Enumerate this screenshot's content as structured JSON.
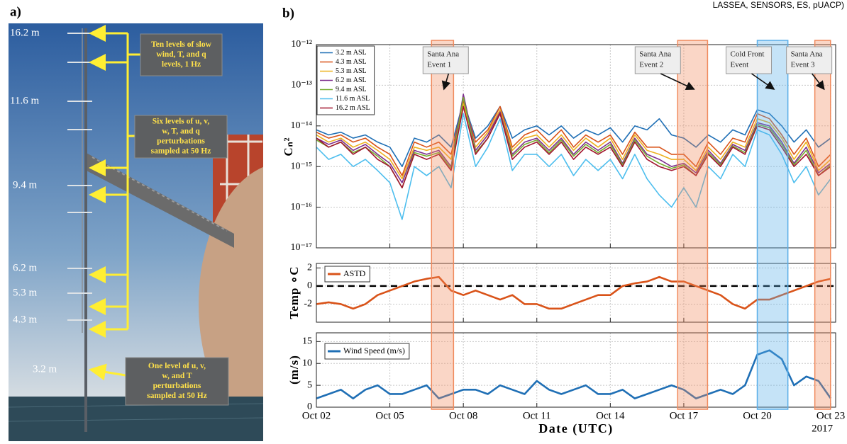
{
  "header": "LASSEA, SENSORS, ES, pUACP)",
  "panel_a": {
    "label": "a)",
    "heights": [
      "16.2 m",
      "11.6 m",
      "9.4 m",
      "6.2 m",
      "5.3 m",
      "4.3 m",
      "3.2 m"
    ],
    "boxes": [
      [
        "Ten levels of slow",
        "wind, T, and q",
        "levels, 1 Hz"
      ],
      [
        "Six levels of u, v,",
        "w, T, and q",
        "perturbations",
        "sampled at 50 Hz"
      ],
      [
        "One level of u, v,",
        "w, and T",
        "perturbations",
        "sampled at 50 Hz"
      ]
    ]
  },
  "panel_b_label": "b)",
  "chart_data": [
    {
      "type": "line",
      "yscale": "log",
      "ylabel": "Cₙ²",
      "ylim": [
        1e-17,
        1e-12
      ],
      "yticks": [
        {
          "value": 1e-17,
          "label": "10⁻¹⁷"
        },
        {
          "value": 1e-16,
          "label": "10⁻¹⁶"
        },
        {
          "value": 1e-15,
          "label": "10⁻¹⁵"
        },
        {
          "value": 1e-14,
          "label": "10⁻¹⁴"
        },
        {
          "value": 1e-13,
          "label": "10⁻¹³"
        },
        {
          "value": 1e-12,
          "label": "10⁻¹²"
        }
      ],
      "xlim": [
        2,
        23.2
      ],
      "grid": true,
      "legend": "upper left",
      "x": [
        2,
        2.5,
        3,
        3.5,
        4,
        4.5,
        5,
        5.5,
        6,
        6.5,
        7,
        7.5,
        8,
        8.5,
        9,
        9.5,
        10,
        10.5,
        11,
        11.5,
        12,
        12.5,
        13,
        13.5,
        14,
        14.5,
        15,
        15.5,
        16,
        16.5,
        17,
        17.5,
        18,
        18.5,
        19,
        19.5,
        20,
        20.5,
        21,
        21.5,
        22,
        22.5,
        23
      ],
      "series": [
        {
          "name": "3.2 m ASL",
          "color": "#1f6fb5",
          "values": [
            8e-15,
            6e-15,
            7e-15,
            5e-15,
            6e-15,
            4e-15,
            3e-15,
            1e-15,
            5e-15,
            4e-15,
            6e-15,
            3e-15,
            4e-14,
            5e-15,
            1e-14,
            3e-14,
            5e-15,
            8e-15,
            1e-14,
            6e-15,
            1e-14,
            5e-15,
            8e-15,
            6e-15,
            9e-15,
            4e-15,
            1e-14,
            8e-15,
            1.5e-14,
            6e-15,
            5e-15,
            3e-15,
            6e-15,
            4e-15,
            8e-15,
            6e-15,
            2.5e-14,
            2e-14,
            1e-14,
            4e-15,
            8e-15,
            3e-15,
            5e-15
          ]
        },
        {
          "name": "4.3 m ASL",
          "color": "#d95319",
          "values": [
            7e-15,
            5e-15,
            6e-15,
            4e-15,
            5e-15,
            3e-15,
            2e-15,
            6e-16,
            4e-15,
            3e-15,
            4e-15,
            2e-15,
            4e-14,
            4e-15,
            8e-15,
            3e-14,
            3e-15,
            6e-15,
            8e-15,
            4e-15,
            8e-15,
            3e-15,
            6e-15,
            4e-15,
            6e-15,
            2e-15,
            7e-15,
            3e-15,
            3e-15,
            2e-15,
            2e-15,
            1e-15,
            4e-15,
            2e-15,
            5e-15,
            4e-15,
            2e-14,
            1.5e-14,
            6e-15,
            2e-15,
            5e-15,
            1e-15,
            2e-15
          ]
        },
        {
          "name": "5.3 m ASL",
          "color": "#edb120",
          "values": [
            6e-15,
            4e-15,
            5e-15,
            3e-15,
            4e-15,
            2.5e-15,
            1.5e-15,
            5e-16,
            3e-15,
            2.5e-15,
            3e-15,
            1.5e-15,
            3.5e-14,
            3e-15,
            7e-15,
            2.5e-14,
            2.5e-15,
            5e-15,
            6e-15,
            3e-15,
            6e-15,
            2.5e-15,
            5e-15,
            3e-15,
            5e-15,
            1.5e-15,
            6e-15,
            2.5e-15,
            2e-15,
            1.5e-15,
            1.5e-15,
            8e-16,
            3e-15,
            1.5e-15,
            4e-15,
            3e-15,
            1.5e-14,
            1.2e-14,
            5e-15,
            1.5e-15,
            4e-15,
            8e-16,
            1.5e-15
          ]
        },
        {
          "name": "6.2 m ASL",
          "color": "#7e2f8e",
          "values": [
            5e-15,
            3.5e-15,
            4.5e-15,
            2.5e-15,
            3.5e-15,
            2e-15,
            1.2e-15,
            4e-16,
            2.5e-15,
            2e-15,
            2.5e-15,
            1e-15,
            6e-14,
            2.5e-15,
            6e-15,
            2.2e-14,
            2e-15,
            4e-15,
            5e-15,
            2.5e-15,
            5e-15,
            2e-15,
            4e-15,
            2.5e-15,
            4e-15,
            1.2e-15,
            5e-15,
            2e-15,
            1.5e-15,
            1e-15,
            1.2e-15,
            7e-16,
            2.5e-15,
            1.2e-15,
            3.5e-15,
            2.5e-15,
            1.2e-14,
            1e-14,
            4e-15,
            1.2e-15,
            3e-15,
            7e-16,
            1.2e-15
          ]
        },
        {
          "name": "9.4 m ASL",
          "color": "#77ac30",
          "values": [
            4.5e-15,
            3e-15,
            4e-15,
            2.2e-15,
            3e-15,
            1.8e-15,
            1e-15,
            3e-16,
            2.2e-15,
            1.8e-15,
            2.2e-15,
            9e-16,
            5e-14,
            2.2e-15,
            5e-15,
            2e-14,
            1.8e-15,
            3.5e-15,
            4.5e-15,
            2.2e-15,
            4.5e-15,
            1.8e-15,
            3.5e-15,
            2.2e-15,
            3.5e-15,
            1.1e-15,
            4.5e-15,
            1.8e-15,
            1.2e-15,
            9e-16,
            1.1e-15,
            6e-16,
            2.2e-15,
            1.1e-15,
            3.2e-15,
            2.2e-15,
            1.1e-14,
            9e-15,
            3.5e-15,
            1.1e-15,
            2.5e-15,
            6e-16,
            1.1e-15
          ]
        },
        {
          "name": "11.6 m ASL",
          "color": "#4dbeee",
          "values": [
            3e-15,
            1.5e-15,
            2e-15,
            1e-15,
            1.5e-15,
            8e-16,
            4e-16,
            5e-17,
            1e-15,
            6e-16,
            1e-15,
            3e-16,
            2e-14,
            1e-15,
            3e-15,
            1.5e-14,
            8e-16,
            2e-15,
            2e-15,
            1e-15,
            2e-15,
            6e-16,
            1.5e-15,
            8e-16,
            1.5e-15,
            5e-16,
            2e-15,
            5e-16,
            2e-16,
            1e-16,
            3e-16,
            1e-16,
            1e-15,
            5e-16,
            2e-15,
            1e-15,
            8e-15,
            6e-15,
            2e-15,
            4e-16,
            1e-15,
            2e-16,
            5e-16
          ]
        },
        {
          "name": "16.2 m ASL",
          "color": "#a2142f",
          "values": [
            5e-15,
            3e-15,
            4e-15,
            2e-15,
            3e-15,
            1.5e-15,
            1e-15,
            3e-16,
            2e-15,
            1.5e-15,
            2e-15,
            8e-16,
            3e-14,
            2e-15,
            5e-15,
            2e-14,
            1.5e-15,
            3e-15,
            4e-15,
            2e-15,
            4e-15,
            1.5e-15,
            3e-15,
            2e-15,
            3e-15,
            1e-15,
            4e-15,
            1.5e-15,
            1e-15,
            8e-16,
            1e-15,
            6e-16,
            2e-15,
            1e-15,
            3e-15,
            2e-15,
            1e-14,
            8e-15,
            3e-15,
            1e-15,
            2e-15,
            6e-16,
            1e-15
          ]
        }
      ],
      "shaded_regions": [
        {
          "x": [
            6.7,
            7.6
          ],
          "color": "#f08a5d",
          "label": [
            "Santa Ana",
            "Event 1"
          ]
        },
        {
          "x": [
            16.75,
            17.97
          ],
          "color": "#f08a5d",
          "label": [
            "Santa Ana",
            "Event 2"
          ]
        },
        {
          "x": [
            20.0,
            21.25
          ],
          "color": "#5aaee8",
          "label": [
            "Cold Front",
            "Event"
          ]
        },
        {
          "x": [
            22.35,
            22.99
          ],
          "color": "#f08a5d",
          "label": [
            "Santa Ana",
            "Event 3"
          ]
        }
      ]
    },
    {
      "type": "line",
      "ylabel": "Temp ∘C",
      "ylim": [
        -4,
        2.5
      ],
      "yticks": [
        -2,
        0,
        2
      ],
      "xlim": [
        2,
        23.2
      ],
      "grid": true,
      "legend": "upper left",
      "reference_line": {
        "value": 0,
        "style": "dashed"
      },
      "x": [
        2,
        2.5,
        3,
        3.5,
        4,
        4.5,
        5,
        5.5,
        6,
        6.5,
        7,
        7.5,
        8,
        8.5,
        9,
        9.5,
        10,
        10.5,
        11,
        11.5,
        12,
        12.5,
        13,
        13.5,
        14,
        14.5,
        15,
        15.5,
        16,
        16.5,
        17,
        17.5,
        18,
        18.5,
        19,
        19.5,
        20,
        20.5,
        21,
        21.5,
        22,
        22.5,
        23
      ],
      "series": [
        {
          "name": "ASTD",
          "color": "#d95319",
          "values": [
            -2,
            -1.8,
            -2,
            -2.5,
            -2,
            -1,
            -0.5,
            0,
            0.5,
            0.8,
            1,
            -0.5,
            -1,
            -0.5,
            -1,
            -1.5,
            -1,
            -2,
            -2,
            -2.5,
            -2.5,
            -2,
            -1.5,
            -1,
            -1,
            0,
            0.3,
            0.5,
            1,
            0.5,
            0.5,
            0,
            -0.5,
            -1,
            -2,
            -2.5,
            -1.5,
            -1.5,
            -1,
            -0.5,
            0,
            0.5,
            0.8
          ]
        }
      ]
    },
    {
      "type": "line",
      "ylabel": "(m/s)",
      "ylim": [
        0,
        17
      ],
      "yticks": [
        0,
        5,
        10,
        15
      ],
      "xlim": [
        2,
        23.2
      ],
      "grid": true,
      "legend": "upper left",
      "xticks": [
        {
          "value": 2,
          "label": "Oct 02"
        },
        {
          "value": 5,
          "label": "Oct 05"
        },
        {
          "value": 8,
          "label": "Oct 08"
        },
        {
          "value": 11,
          "label": "Oct 11"
        },
        {
          "value": 14,
          "label": "Oct 14"
        },
        {
          "value": 17,
          "label": "Oct 17"
        },
        {
          "value": 20,
          "label": "Oct 20"
        },
        {
          "value": 23,
          "label": "Oct 23"
        }
      ],
      "xlabel": "Date (UTC)",
      "year_label": "2017",
      "x": [
        2,
        2.5,
        3,
        3.5,
        4,
        4.5,
        5,
        5.5,
        6,
        6.5,
        7,
        7.5,
        8,
        8.5,
        9,
        9.5,
        10,
        10.5,
        11,
        11.5,
        12,
        12.5,
        13,
        13.5,
        14,
        14.5,
        15,
        15.5,
        16,
        16.5,
        17,
        17.5,
        18,
        18.5,
        19,
        19.5,
        20,
        20.5,
        21,
        21.5,
        22,
        22.5,
        23
      ],
      "series": [
        {
          "name": "Wind Speed (m/s)",
          "color": "#1f6fb5",
          "values": [
            2,
            3,
            4,
            2,
            4,
            5,
            3,
            3,
            4,
            5,
            2,
            3,
            4,
            4,
            3,
            5,
            4,
            3,
            6,
            4,
            3,
            4,
            5,
            3,
            3,
            4,
            2,
            3,
            4,
            5,
            4,
            2,
            3,
            4,
            3,
            5,
            12,
            13,
            11,
            5,
            7,
            6,
            2
          ]
        }
      ]
    }
  ]
}
